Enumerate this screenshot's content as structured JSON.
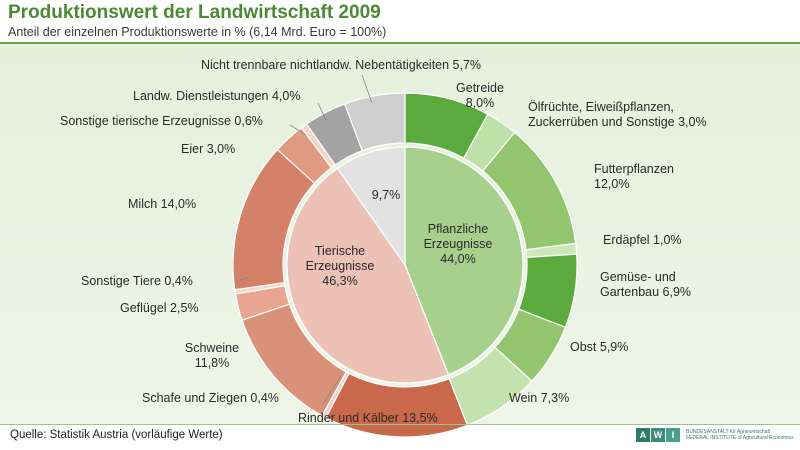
{
  "header": {
    "title": "Produktionswert der Landwirtschaft 2009",
    "subtitle": "Anteil der einzelnen Produktionswerte in % (6,14 Mrd. Euro = 100%)"
  },
  "footer": {
    "source": "Quelle: Statistik Austria (vorläufige Werte)",
    "logo_letters": [
      "A",
      "W",
      "I"
    ],
    "logo_text_1": "BUNDESANSTALT für Agrarwirtschaft",
    "logo_text_2": "FEDERAL INSTITUTE of Agricultural Economics"
  },
  "colors": {
    "title": "#4a8a33",
    "background": "#e7f1e0"
  },
  "chart_data": {
    "type": "pie",
    "inner": [
      {
        "lines": [
          "Pflanzliche",
          "Erzeugnisse",
          "44,0%"
        ],
        "value": 44.0,
        "color": "#a8d08d"
      },
      {
        "lines": [
          "Tierische",
          "Erzeugnisse",
          "46,3%"
        ],
        "value": 46.3,
        "color": "#ecc2b6"
      },
      {
        "lines": [
          "9,7%"
        ],
        "value": 9.7,
        "color": "#e2e2e2"
      }
    ],
    "outer": [
      {
        "lines": [
          "Getreide",
          "8,0%"
        ],
        "value": 8.0,
        "color": "#5aaa3e"
      },
      {
        "lines": [
          "Ölfrüchte, Eiweißpflanzen,",
          "Zuckerrüben und Sonstige  3,0%"
        ],
        "value": 3.0,
        "color": "#bfe0a8"
      },
      {
        "lines": [
          "Futterpflanzen",
          "12,0%"
        ],
        "value": 12.0,
        "color": "#93c56f"
      },
      {
        "lines": [
          "Erdäpfel 1,0%"
        ],
        "value": 1.0,
        "color": "#cde8b8"
      },
      {
        "lines": [
          "Gemüse- und",
          "Gartenbau  6,9%"
        ],
        "value": 6.9,
        "color": "#5aaa3e"
      },
      {
        "lines": [
          "Obst 5,9%"
        ],
        "value": 5.9,
        "color": "#93c56f"
      },
      {
        "lines": [
          "Wein 7,3%"
        ],
        "value": 7.3,
        "color": "#c4e2ad"
      },
      {
        "lines": [
          "Rinder und Kälber  13,5%"
        ],
        "value": 13.5,
        "color": "#c9684a"
      },
      {
        "lines": [
          "Schafe und Ziegen  0,4%"
        ],
        "value": 0.4,
        "color": "#f2d2c6"
      },
      {
        "lines": [
          "Schweine",
          "11,8%"
        ],
        "value": 11.8,
        "color": "#d99279"
      },
      {
        "lines": [
          "Geflügel  2,5%"
        ],
        "value": 2.5,
        "color": "#e8a692"
      },
      {
        "lines": [
          "Sonstige Tiere 0,4%"
        ],
        "value": 0.4,
        "color": "#f5d8cd"
      },
      {
        "lines": [
          "Milch  14,0%"
        ],
        "value": 14.0,
        "color": "#d4816a"
      },
      {
        "lines": [
          "Eier  3,0%"
        ],
        "value": 3.0,
        "color": "#e09a82"
      },
      {
        "lines": [
          "Sonstige tierische Erzeugnisse  0,6%"
        ],
        "value": 0.6,
        "color": "#f3d6ca"
      },
      {
        "lines": [
          "Landw. Dienstleistungen 4,0%"
        ],
        "value": 4.0,
        "color": "#a3a3a3"
      },
      {
        "lines": [
          "Nicht trennbare nichtlandw. Nebentätigkeiten 5,7%"
        ],
        "value": 5.7,
        "color": "#cfcfcf"
      }
    ]
  }
}
